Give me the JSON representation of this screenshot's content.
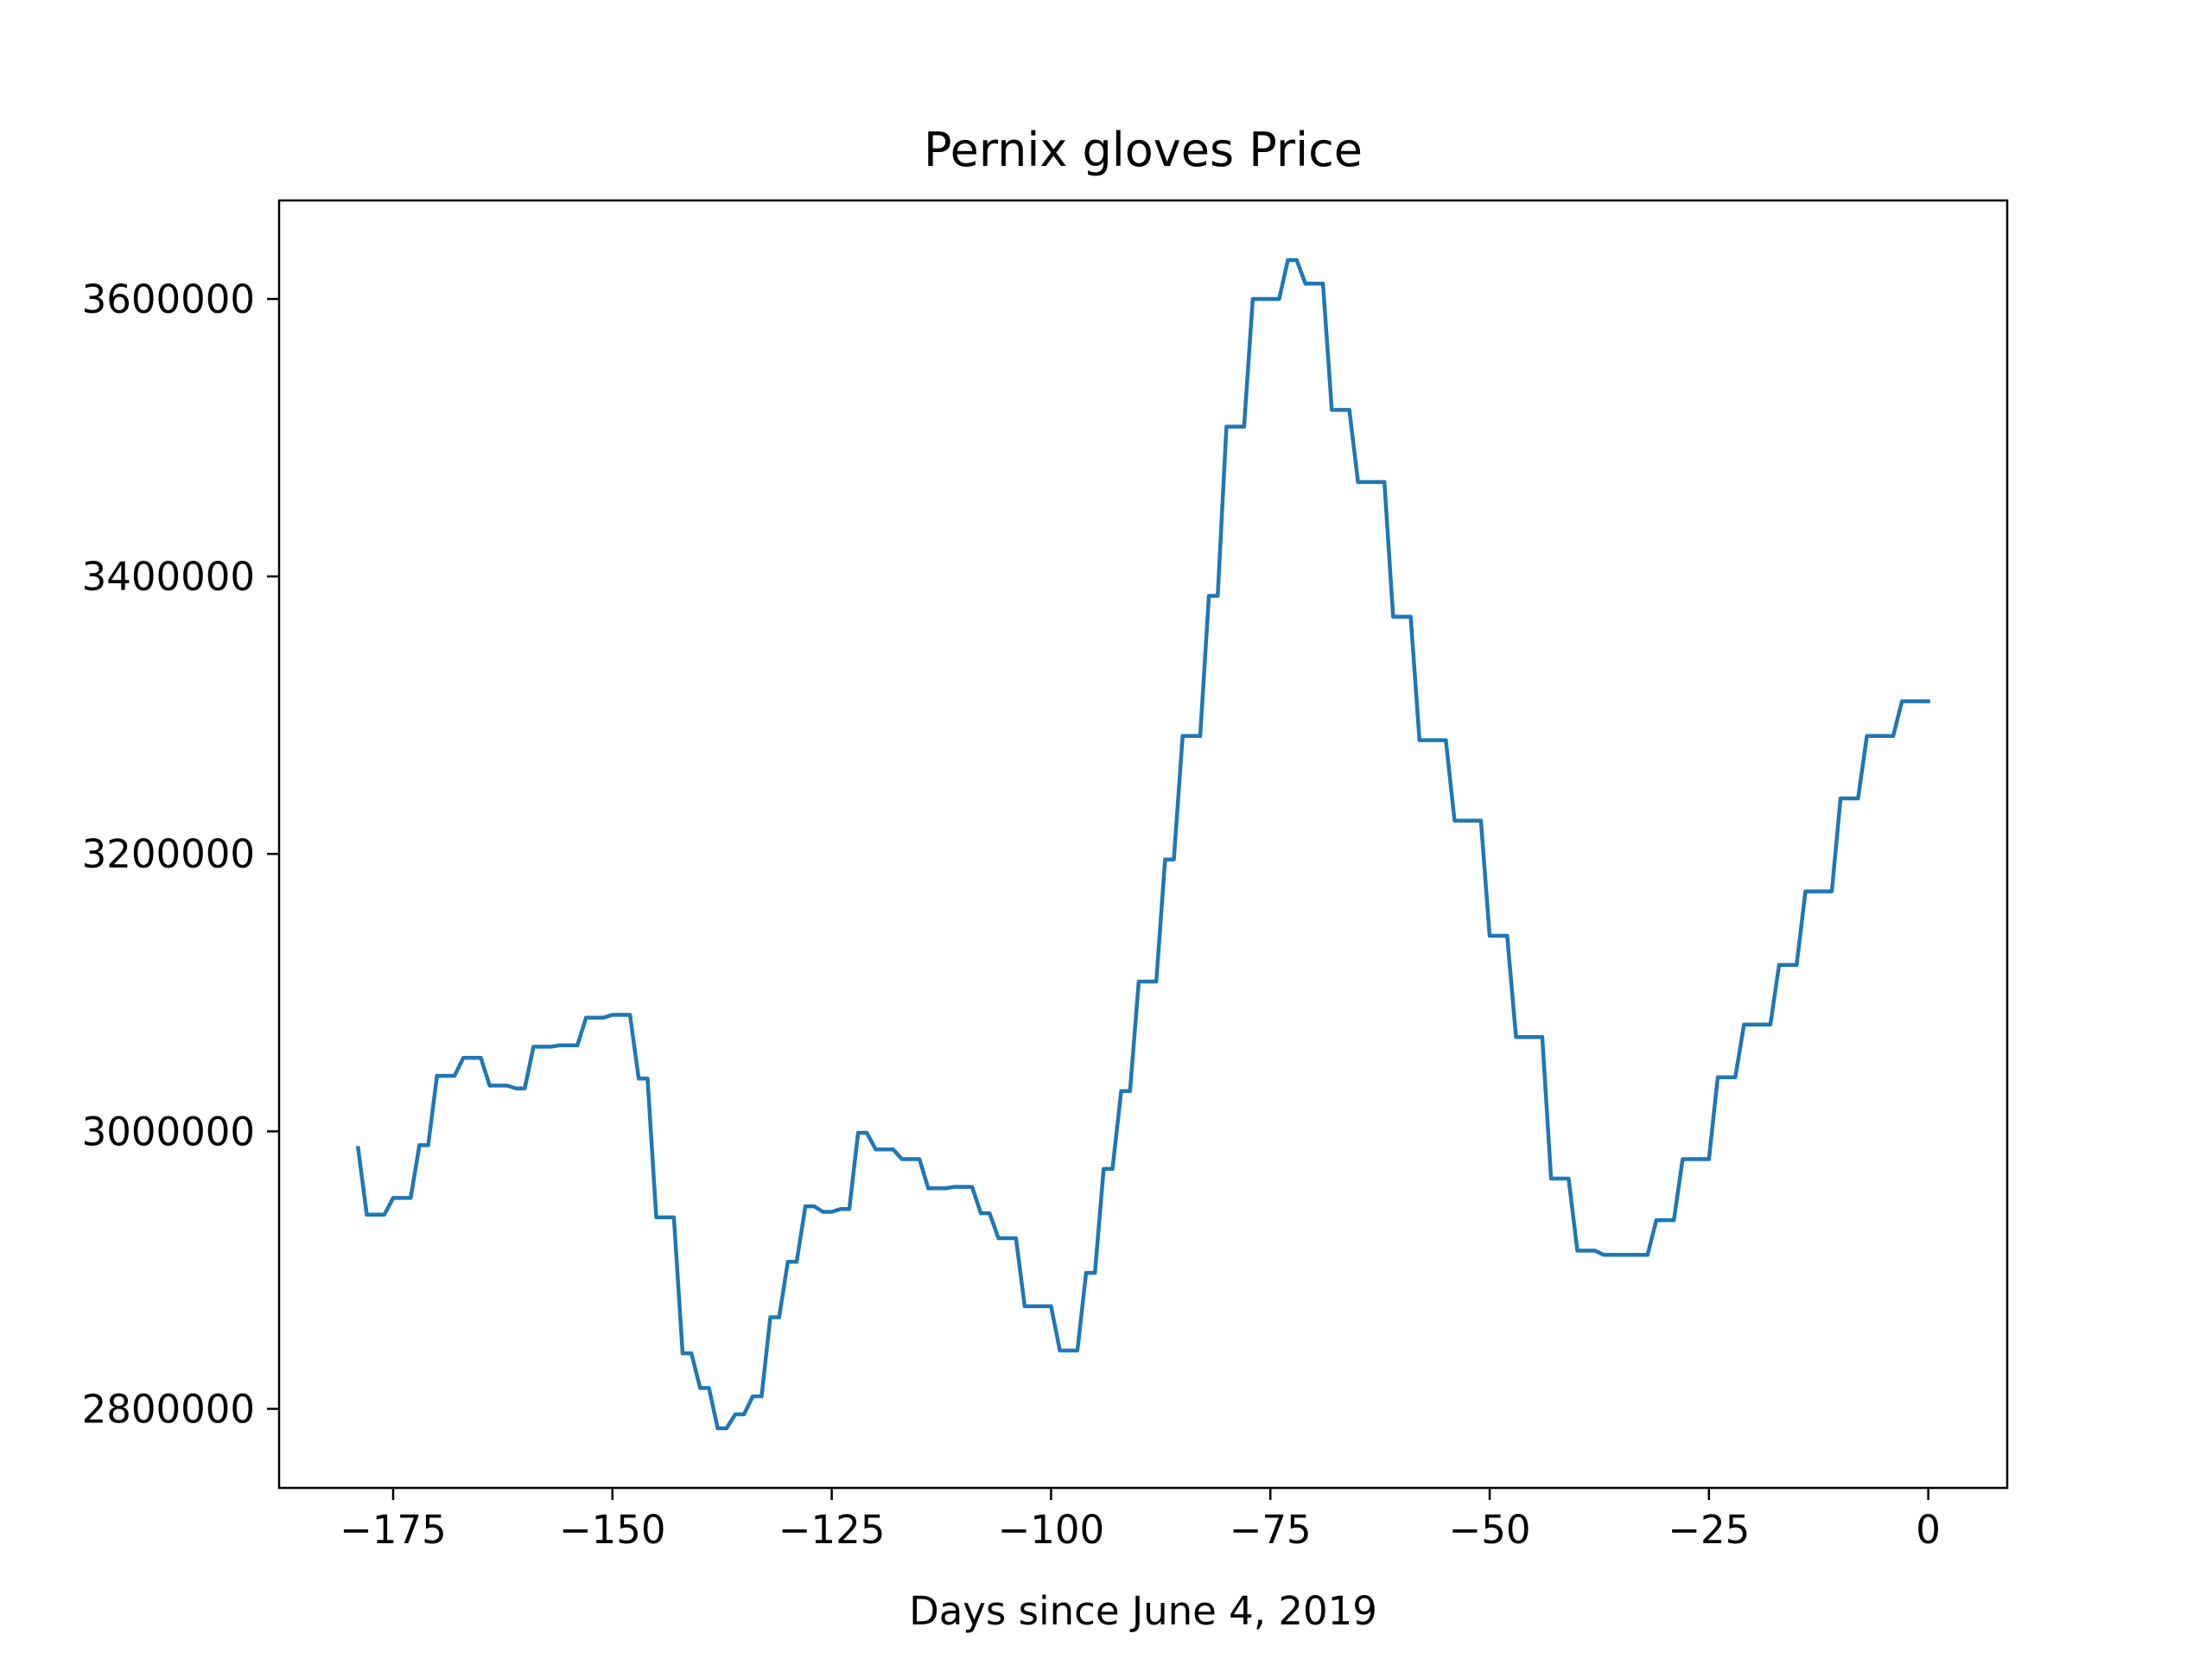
{
  "chart_data": {
    "type": "line",
    "title": "Pernix gloves Price",
    "xlabel": "Days since June 4, 2019",
    "ylabel": "",
    "xlim": [
      -188,
      9
    ],
    "ylim": [
      2743000,
      3671000
    ],
    "xticks": [
      -175,
      -150,
      -125,
      -100,
      -75,
      -50,
      -25,
      0
    ],
    "xtick_labels": [
      "−175",
      "−150",
      "−125",
      "−100",
      "−75",
      "−50",
      "−25",
      "0"
    ],
    "yticks": [
      2800000,
      3000000,
      3200000,
      3400000,
      3600000
    ],
    "ytick_labels": [
      "2800000",
      "3000000",
      "3200000",
      "3400000",
      "3600000"
    ],
    "grid": false,
    "legend": false,
    "line_color": "#1f77b4",
    "series": [
      {
        "x": [
          -179,
          -178,
          -177,
          -176,
          -175,
          -174,
          -173,
          -172,
          -171,
          -170,
          -169,
          -168,
          -167,
          -166,
          -165,
          -164,
          -163,
          -162,
          -161,
          -160,
          -159,
          -158,
          -157,
          -156,
          -155,
          -154,
          -153,
          -152,
          -151,
          -150,
          -149,
          -148,
          -147,
          -146,
          -145,
          -144,
          -143,
          -142,
          -141,
          -140,
          -139,
          -138,
          -137,
          -136,
          -135,
          -134,
          -133,
          -132,
          -131,
          -130,
          -129,
          -128,
          -127,
          -126,
          -125,
          -124,
          -123,
          -122,
          -121,
          -120,
          -119,
          -118,
          -117,
          -116,
          -115,
          -114,
          -113,
          -112,
          -111,
          -110,
          -109,
          -108,
          -107,
          -106,
          -105,
          -104,
          -103,
          -102,
          -101,
          -100,
          -99,
          -98,
          -97,
          -96,
          -95,
          -94,
          -93,
          -92,
          -91,
          -90,
          -89,
          -88,
          -87,
          -86,
          -85,
          -84,
          -83,
          -82,
          -81,
          -80,
          -79,
          -78,
          -77,
          -76,
          -75,
          -74,
          -73,
          -72,
          -71,
          -70,
          -69,
          -68,
          -67,
          -66,
          -65,
          -64,
          -63,
          -62,
          -61,
          -60,
          -59,
          -58,
          -57,
          -56,
          -55,
          -54,
          -53,
          -52,
          -51,
          -50,
          -49,
          -48,
          -47,
          -46,
          -45,
          -44,
          -43,
          -42,
          -41,
          -40,
          -39,
          -38,
          -37,
          -36,
          -35,
          -34,
          -33,
          -32,
          -31,
          -30,
          -29,
          -28,
          -27,
          -26,
          -25,
          -24,
          -23,
          -22,
          -21,
          -20,
          -19,
          -18,
          -17,
          -16,
          -15,
          -14,
          -13,
          -12,
          -11,
          -10,
          -9,
          -8,
          -7,
          -6,
          -5,
          -4,
          -3,
          -2,
          -1,
          0
        ],
        "values": [
          2988000,
          2940000,
          2940000,
          2940000,
          2952000,
          2952000,
          2952000,
          2990000,
          2990000,
          3040000,
          3040000,
          3040000,
          3053000,
          3053000,
          3053000,
          3033000,
          3033000,
          3033000,
          3031000,
          3031000,
          3061000,
          3061000,
          3061000,
          3062000,
          3062000,
          3062000,
          3082000,
          3082000,
          3082000,
          3084000,
          3084000,
          3084000,
          3038000,
          3038000,
          2938000,
          2938000,
          2938000,
          2840000,
          2840000,
          2815000,
          2815000,
          2786000,
          2786000,
          2796000,
          2796000,
          2809000,
          2809000,
          2866000,
          2866000,
          2906000,
          2906000,
          2946000,
          2946000,
          2942000,
          2942000,
          2944000,
          2944000,
          2999000,
          2999000,
          2987000,
          2987000,
          2987000,
          2980000,
          2980000,
          2980000,
          2959000,
          2959000,
          2959000,
          2960000,
          2960000,
          2960000,
          2941000,
          2941000,
          2923000,
          2923000,
          2923000,
          2874000,
          2874000,
          2874000,
          2874000,
          2842000,
          2842000,
          2842000,
          2898000,
          2898000,
          2973000,
          2973000,
          3029000,
          3029000,
          3108000,
          3108000,
          3108000,
          3196000,
          3196000,
          3285000,
          3285000,
          3285000,
          3386000,
          3386000,
          3508000,
          3508000,
          3508000,
          3600000,
          3600000,
          3600000,
          3600000,
          3628000,
          3628000,
          3611000,
          3611000,
          3611000,
          3520000,
          3520000,
          3520000,
          3468000,
          3468000,
          3468000,
          3468000,
          3371000,
          3371000,
          3371000,
          3282000,
          3282000,
          3282000,
          3282000,
          3224000,
          3224000,
          3224000,
          3224000,
          3141000,
          3141000,
          3141000,
          3068000,
          3068000,
          3068000,
          3068000,
          2966000,
          2966000,
          2966000,
          2914000,
          2914000,
          2914000,
          2911000,
          2911000,
          2911000,
          2911000,
          2911000,
          2911000,
          2936000,
          2936000,
          2936000,
          2980000,
          2980000,
          2980000,
          2980000,
          3039000,
          3039000,
          3039000,
          3077000,
          3077000,
          3077000,
          3077000,
          3120000,
          3120000,
          3120000,
          3173000,
          3173000,
          3173000,
          3173000,
          3240000,
          3240000,
          3240000,
          3285000,
          3285000,
          3285000,
          3285000,
          3310000,
          3310000,
          3310000,
          3310000
        ]
      }
    ]
  }
}
